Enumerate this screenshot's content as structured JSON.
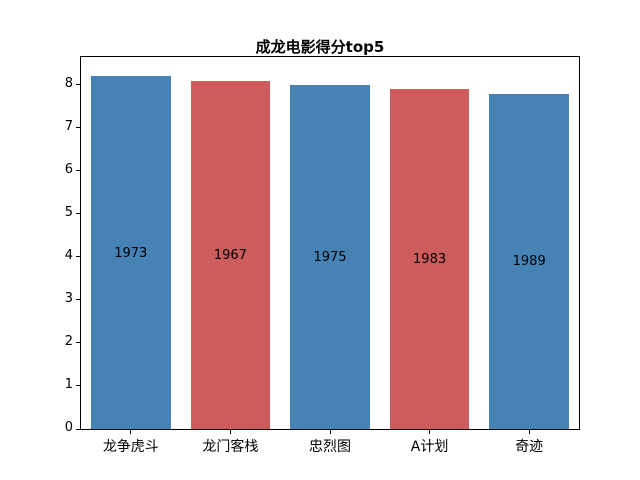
{
  "chart_data": {
    "type": "bar",
    "title": "成龙电影得分top5",
    "categories": [
      "龙争虎斗",
      "龙门客栈",
      "忠烈图",
      "A计划",
      "奇迹"
    ],
    "values": [
      8.2,
      8.1,
      8.0,
      7.9,
      7.8
    ],
    "bar_labels": [
      "1973",
      "1967",
      "1975",
      "1983",
      "1989"
    ],
    "bar_colors": [
      "#4682B4",
      "#CD5C5C",
      "#4682B4",
      "#CD5C5C",
      "#4682B4"
    ],
    "xlabel": "",
    "ylabel": "",
    "ylim": [
      0,
      8.65
    ],
    "yticks": [
      0,
      1,
      2,
      3,
      4,
      5,
      6,
      7,
      8
    ],
    "grid": "off",
    "legend": "none",
    "background_color": "#ffffff",
    "axis_color": "#000000",
    "label_position": "center-of-bar"
  }
}
